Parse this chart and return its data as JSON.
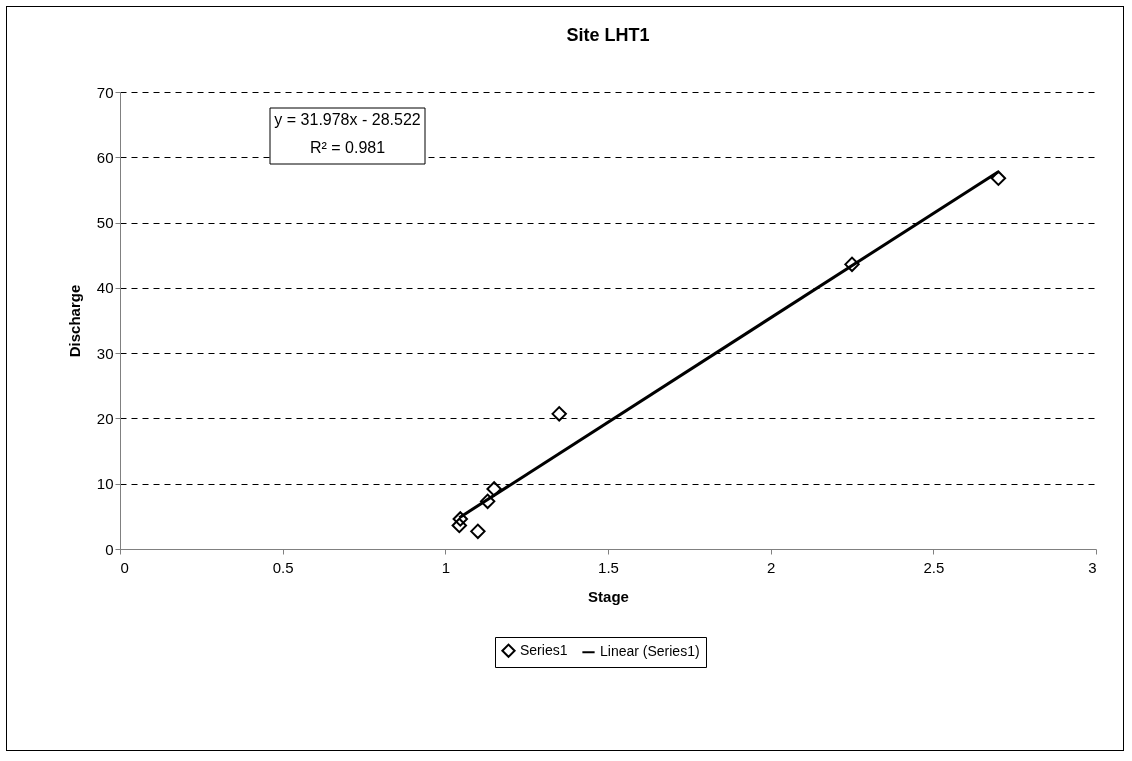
{
  "chart_data": {
    "type": "scatter",
    "title": "Site LHT1",
    "xlabel": "Stage",
    "ylabel": "Discharge",
    "series": [
      {
        "name": "Series1",
        "color": "#000000",
        "marker": "diamond",
        "x": [
          1.046,
          1.043,
          1.1,
          1.13,
          1.15,
          1.35,
          2.25,
          2.7
        ],
        "values": [
          4.6,
          3.6,
          2.7,
          7.3,
          9.2,
          20.7,
          43.6,
          56.8
        ]
      },
      {
        "type": "line",
        "name": "Linear (Series1)",
        "color": "#000000",
        "x": [
          1.043,
          2.7
        ],
        "values": [
          4.8,
          57.8
        ]
      }
    ],
    "xlim": [
      0,
      3
    ],
    "xticks": [
      0,
      0.5,
      1,
      1.5,
      2,
      2.5,
      3
    ],
    "ylim": [
      0,
      70
    ],
    "yticks": [
      0,
      10,
      20,
      30,
      40,
      50,
      60,
      70
    ],
    "grid": "y",
    "legend": "bottom",
    "line_style": "solid",
    "annotations": [
      "y = 31.978x - 28.522",
      "R² = 0.981"
    ]
  }
}
